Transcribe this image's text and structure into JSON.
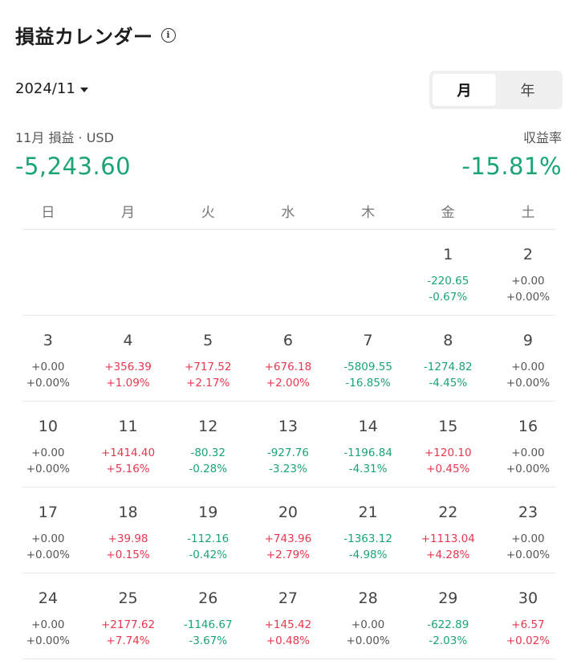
{
  "header": {
    "title": "損益カレンダー",
    "info_icon": "info-circle-icon"
  },
  "month_select": {
    "value": "2024/11"
  },
  "view_toggle": {
    "month_label": "月",
    "year_label": "年",
    "selected": "month"
  },
  "summary": {
    "pnl_label": "11月 損益 · USD",
    "pnl_value": "-5,243.60",
    "rate_label": "収益率",
    "rate_value": "-15.81%"
  },
  "colors": {
    "positive": "#e8384f",
    "negative": "#1aa573",
    "neutral": "#555555"
  },
  "weekdays": [
    "日",
    "月",
    "火",
    "水",
    "木",
    "金",
    "土"
  ],
  "weeks": [
    [
      {
        "day": "",
        "pnl": "",
        "pct": ""
      },
      {
        "day": "",
        "pnl": "",
        "pct": ""
      },
      {
        "day": "",
        "pnl": "",
        "pct": ""
      },
      {
        "day": "",
        "pnl": "",
        "pct": ""
      },
      {
        "day": "",
        "pnl": "",
        "pct": ""
      },
      {
        "day": "1",
        "pnl": "-220.65",
        "pct": "-0.67%"
      },
      {
        "day": "2",
        "pnl": "+0.00",
        "pct": "+0.00%"
      }
    ],
    [
      {
        "day": "3",
        "pnl": "+0.00",
        "pct": "+0.00%"
      },
      {
        "day": "4",
        "pnl": "+356.39",
        "pct": "+1.09%"
      },
      {
        "day": "5",
        "pnl": "+717.52",
        "pct": "+2.17%"
      },
      {
        "day": "6",
        "pnl": "+676.18",
        "pct": "+2.00%"
      },
      {
        "day": "7",
        "pnl": "-5809.55",
        "pct": "-16.85%"
      },
      {
        "day": "8",
        "pnl": "-1274.82",
        "pct": "-4.45%"
      },
      {
        "day": "9",
        "pnl": "+0.00",
        "pct": "+0.00%"
      }
    ],
    [
      {
        "day": "10",
        "pnl": "+0.00",
        "pct": "+0.00%"
      },
      {
        "day": "11",
        "pnl": "+1414.40",
        "pct": "+5.16%"
      },
      {
        "day": "12",
        "pnl": "-80.32",
        "pct": "-0.28%"
      },
      {
        "day": "13",
        "pnl": "-927.76",
        "pct": "-3.23%"
      },
      {
        "day": "14",
        "pnl": "-1196.84",
        "pct": "-4.31%"
      },
      {
        "day": "15",
        "pnl": "+120.10",
        "pct": "+0.45%"
      },
      {
        "day": "16",
        "pnl": "+0.00",
        "pct": "+0.00%"
      }
    ],
    [
      {
        "day": "17",
        "pnl": "+0.00",
        "pct": "+0.00%"
      },
      {
        "day": "18",
        "pnl": "+39.98",
        "pct": "+0.15%"
      },
      {
        "day": "19",
        "pnl": "-112.16",
        "pct": "-0.42%"
      },
      {
        "day": "20",
        "pnl": "+743.96",
        "pct": "+2.79%"
      },
      {
        "day": "21",
        "pnl": "-1363.12",
        "pct": "-4.98%"
      },
      {
        "day": "22",
        "pnl": "+1113.04",
        "pct": "+4.28%"
      },
      {
        "day": "23",
        "pnl": "+0.00",
        "pct": "+0.00%"
      }
    ],
    [
      {
        "day": "24",
        "pnl": "+0.00",
        "pct": "+0.00%"
      },
      {
        "day": "25",
        "pnl": "+2177.62",
        "pct": "+7.74%"
      },
      {
        "day": "26",
        "pnl": "-1146.67",
        "pct": "-3.67%"
      },
      {
        "day": "27",
        "pnl": "+145.42",
        "pct": "+0.48%"
      },
      {
        "day": "28",
        "pnl": "+0.00",
        "pct": "+0.00%"
      },
      {
        "day": "29",
        "pnl": "-622.89",
        "pct": "-2.03%"
      },
      {
        "day": "30",
        "pnl": "+6.57",
        "pct": "+0.02%"
      }
    ]
  ]
}
